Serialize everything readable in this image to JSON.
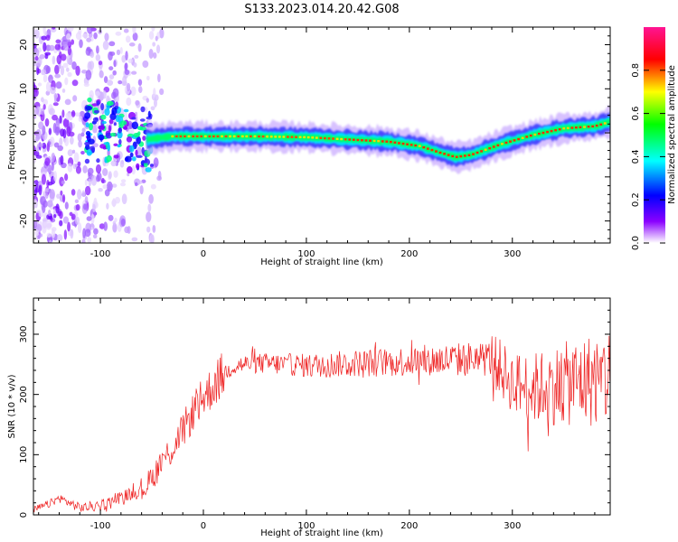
{
  "title": "S133.2023.014.20.42.G08",
  "chart_data": [
    {
      "type": "heatmap",
      "name": "spectrogram",
      "xlabel": "Height of straight line (km)",
      "ylabel": "Frequency (Hz)",
      "xlim": [
        -165,
        395
      ],
      "ylim": [
        -25,
        24
      ],
      "xticks": [
        -100,
        0,
        100,
        200,
        300
      ],
      "yticks": [
        -20,
        -10,
        0,
        10,
        20
      ],
      "colorbar": {
        "label": "Normalized spectral amplitude",
        "ticks": [
          "0.0",
          "0.2",
          "0.4",
          "0.6",
          "0.8"
        ],
        "range": [
          0,
          1
        ],
        "colormap": [
          "#ffffff",
          "#8a00ff",
          "#0000ff",
          "#00ffff",
          "#00ff00",
          "#ffff00",
          "#ff0000",
          "#ff1493"
        ]
      },
      "ridge": {
        "x": [
          -55,
          -30,
          0,
          50,
          100,
          140,
          180,
          210,
          230,
          245,
          260,
          290,
          320,
          350,
          380,
          395
        ],
        "y": [
          -1.5,
          -0.8,
          -0.8,
          -0.8,
          -1.0,
          -1.5,
          -2.0,
          -3.0,
          -4.5,
          -5.5,
          -5.0,
          -2.5,
          -0.5,
          1.0,
          1.5,
          2.5
        ]
      },
      "noise_region_x": [
        -165,
        -40
      ]
    },
    {
      "type": "line",
      "name": "snr",
      "xlabel": "Height of straight line (km)",
      "ylabel": "SNR (10 * v/v)",
      "xlim": [
        -165,
        395
      ],
      "ylim": [
        0,
        360
      ],
      "xticks": [
        -100,
        0,
        100,
        200,
        300
      ],
      "yticks": [
        0,
        100,
        200,
        300
      ],
      "color": "#ee2222",
      "envelope": {
        "x": [
          -165,
          -150,
          -140,
          -130,
          -120,
          -100,
          -80,
          -60,
          -50,
          -40,
          -30,
          -20,
          -10,
          0,
          10,
          20,
          30,
          50,
          80,
          100,
          150,
          200,
          250,
          280,
          290,
          300,
          320,
          340,
          360,
          380,
          395
        ],
        "y": [
          8,
          18,
          28,
          20,
          12,
          15,
          30,
          40,
          60,
          90,
          110,
          140,
          170,
          195,
          215,
          235,
          248,
          252,
          250,
          248,
          252,
          255,
          258,
          260,
          240,
          220,
          210,
          215,
          220,
          225,
          230
        ]
      }
    }
  ]
}
